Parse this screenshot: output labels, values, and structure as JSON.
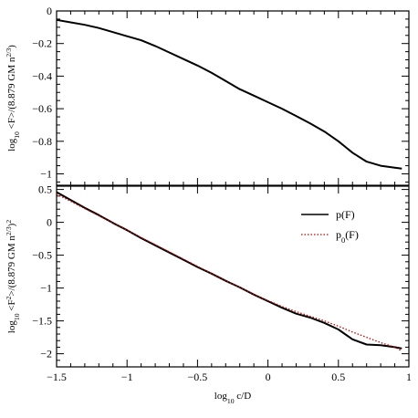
{
  "chart_data": [
    {
      "type": "line",
      "panel": "top",
      "ylabel_parts": [
        "log",
        "10",
        " <F>/(8.879 GM n",
        "2/3",
        ")"
      ],
      "xlim": [
        -1.5,
        1.0
      ],
      "ylim": [
        -1.07,
        0.0
      ],
      "yticks": [
        0,
        -0.2,
        -0.4,
        -0.6,
        -0.8,
        -1
      ],
      "ytick_labels": [
        "0",
        "−0.2",
        "−0.4",
        "−0.6",
        "−0.8",
        "−1"
      ],
      "grid": false,
      "series": [
        {
          "color": "#000000",
          "style": "solid",
          "x": [
            -1.5,
            -1.4,
            -1.3,
            -1.2,
            -1.1,
            -1.0,
            -0.9,
            -0.8,
            -0.7,
            -0.6,
            -0.5,
            -0.4,
            -0.3,
            -0.2,
            -0.1,
            0.0,
            0.1,
            0.2,
            0.3,
            0.4,
            0.5,
            0.6,
            0.7,
            0.8,
            0.9,
            0.95
          ],
          "y": [
            -0.055,
            -0.07,
            -0.085,
            -0.105,
            -0.13,
            -0.155,
            -0.18,
            -0.215,
            -0.255,
            -0.295,
            -0.335,
            -0.38,
            -0.43,
            -0.48,
            -0.52,
            -0.56,
            -0.6,
            -0.645,
            -0.69,
            -0.74,
            -0.8,
            -0.87,
            -0.925,
            -0.95,
            -0.962,
            -0.968
          ]
        }
      ]
    },
    {
      "type": "line",
      "panel": "bottom",
      "ylabel_parts": [
        "log",
        "10",
        " <F",
        "2",
        ">/(8.879 GM n",
        "2/3",
        ")",
        "2"
      ],
      "xlabel_parts": [
        "log",
        "10",
        " c/D"
      ],
      "xlim": [
        -1.5,
        1.0
      ],
      "ylim": [
        -2.2,
        0.55
      ],
      "xticks": [
        -1.5,
        -1,
        -0.5,
        0,
        0.5,
        1
      ],
      "xtick_labels": [
        "−1.5",
        "−1",
        "−0.5",
        "0",
        "0.5",
        "1"
      ],
      "yticks": [
        0.5,
        0,
        -0.5,
        -1,
        -1.5,
        -2
      ],
      "ytick_labels": [
        "0.5",
        "0",
        "−0.5",
        "−1",
        "−1.5",
        "−2"
      ],
      "grid": false,
      "legend_position": "top-right",
      "series": [
        {
          "name_parts": [
            "p(F)"
          ],
          "color": "#000000",
          "style": "solid",
          "x": [
            -1.5,
            -1.4,
            -1.3,
            -1.2,
            -1.1,
            -1.0,
            -0.9,
            -0.8,
            -0.7,
            -0.6,
            -0.5,
            -0.4,
            -0.3,
            -0.2,
            -0.1,
            0.0,
            0.1,
            0.2,
            0.3,
            0.4,
            0.5,
            0.6,
            0.7,
            0.8,
            0.9,
            0.95
          ],
          "y": [
            0.46,
            0.34,
            0.22,
            0.11,
            -0.01,
            -0.12,
            -0.24,
            -0.35,
            -0.46,
            -0.57,
            -0.68,
            -0.78,
            -0.89,
            -0.99,
            -1.1,
            -1.2,
            -1.3,
            -1.39,
            -1.45,
            -1.53,
            -1.63,
            -1.78,
            -1.86,
            -1.87,
            -1.9,
            -1.92
          ]
        },
        {
          "name_parts": [
            "p",
            "0",
            "(F)"
          ],
          "color": "#cc0000",
          "style": "dotted",
          "x": [
            -1.5,
            -1.4,
            -1.3,
            -1.2,
            -1.1,
            -1.0,
            -0.9,
            -0.8,
            -0.7,
            -0.6,
            -0.5,
            -0.4,
            -0.3,
            -0.2,
            -0.1,
            0.0,
            0.1,
            0.2,
            0.3,
            0.4,
            0.5,
            0.6,
            0.7,
            0.8,
            0.9,
            0.95
          ],
          "y": [
            0.43,
            0.32,
            0.21,
            0.1,
            -0.01,
            -0.12,
            -0.23,
            -0.34,
            -0.45,
            -0.56,
            -0.67,
            -0.78,
            -0.89,
            -0.99,
            -1.1,
            -1.19,
            -1.28,
            -1.36,
            -1.43,
            -1.5,
            -1.58,
            -1.67,
            -1.75,
            -1.83,
            -1.9,
            -1.96
          ]
        }
      ]
    }
  ]
}
